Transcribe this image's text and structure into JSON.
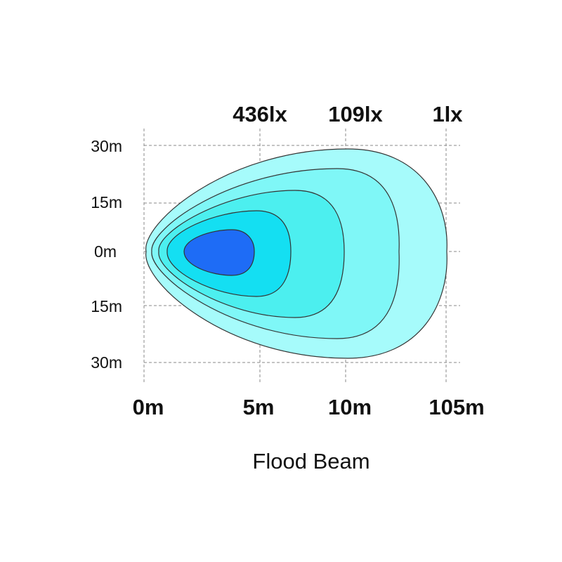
{
  "chart_data": {
    "type": "contour",
    "title": "Flood Beam",
    "x_ticks": [
      "0m",
      "5m",
      "10m",
      "105m"
    ],
    "y_ticks": [
      "30m",
      "15m",
      "0m",
      "15m",
      "30m"
    ],
    "grid": true,
    "lux_labels": [
      {
        "label": "436lx",
        "x_tick": "5m"
      },
      {
        "label": "109lx",
        "x_tick": "10m"
      },
      {
        "label": "1lx",
        "x_tick": "105m"
      }
    ],
    "contours": [
      {
        "level": 1,
        "color": "#a6fbfb",
        "reach_x_tick": "105m",
        "half_width_m": 29
      },
      {
        "level": 2,
        "color": "#7ff7f7",
        "reach_x_tick": "between 10m and 105m",
        "half_width_m": 23
      },
      {
        "level": 3,
        "color": "#4cefef",
        "reach_x_tick": "10m",
        "half_width_m": 17
      },
      {
        "level": 4,
        "color": "#14dff2",
        "reach_x_tick": "between 5m and 10m",
        "half_width_m": 11
      },
      {
        "level": 5,
        "color": "#1e6cf6",
        "reach_x_tick": "5m",
        "half_width_m": 6
      }
    ]
  }
}
